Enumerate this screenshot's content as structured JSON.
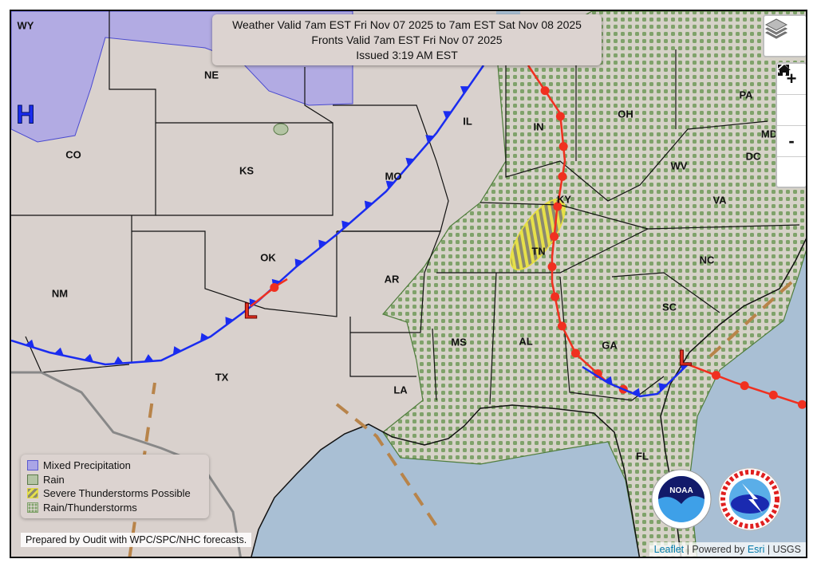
{
  "title": {
    "line1": "Weather Valid 7am EST Fri Nov 07 2025 to 7am EST Sat Nov 08 2025",
    "line2": "Fronts Valid 7am EST Fri Nov 07 2025",
    "line3": "Issued 3:19 AM EST"
  },
  "controls": {
    "layers_icon": "layers-icon",
    "zoom_in": "+",
    "home_icon": "home-icon",
    "zoom_out": "-",
    "fullscreen_icon": "fullscreen-icon"
  },
  "states": [
    "WY",
    "NE",
    "CO",
    "KS",
    "MO",
    "IL",
    "IN",
    "OH",
    "PA",
    "MD",
    "DC",
    "WV",
    "VA",
    "KY",
    "TN",
    "NC",
    "OK",
    "AR",
    "SC",
    "NM",
    "MS",
    "AL",
    "GA",
    "TX",
    "LA",
    "FL"
  ],
  "pressure_centers": {
    "high": "H",
    "low": "L"
  },
  "legend": [
    {
      "label": "Mixed Precipitation",
      "color": "#aaa5e6"
    },
    {
      "label": "Rain",
      "color": "#b4c4a4"
    },
    {
      "label": "Severe Thunderstorms Possible",
      "color": "#f0f060"
    },
    {
      "label": "Rain/Thunderstorms",
      "color": "#7a9e68"
    }
  ],
  "prepared_by": "Prepared by Oudit with WPC/SPC/NHC forecasts.",
  "attribution": {
    "leaflet": "Leaflet",
    "sep1": " | Powered by ",
    "esri": "Esri",
    "sep2": " | USGS"
  },
  "logos": {
    "noaa": "NOAA",
    "nws": "NATIONAL WEATHER SERVICE"
  },
  "colors": {
    "land": "#d9d1cd",
    "water": "#a9bfd4",
    "cold_front": "#1a2cf0",
    "warm_front": "#f03020",
    "trough": "#b8844a"
  }
}
